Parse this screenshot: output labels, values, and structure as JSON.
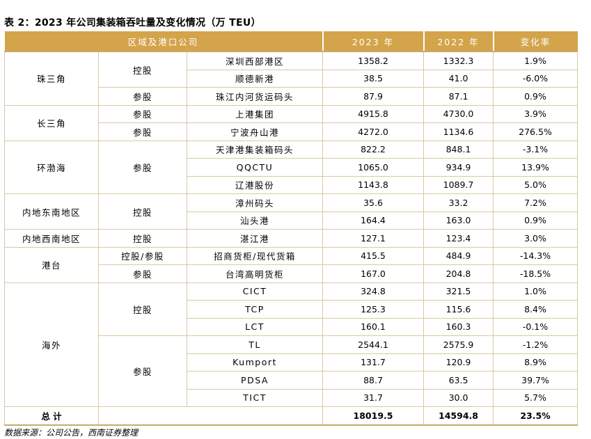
{
  "title": "表 2：2023 年公司集装箱吞吐量及变化情况（万 TEU）",
  "header": {
    "region_port": "区域及港口公司",
    "y2023": "2023 年",
    "y2022": "2022 年",
    "change": "变化率"
  },
  "regions": [
    {
      "name": "珠三角",
      "groups": [
        {
          "type": "控股",
          "rows": [
            {
              "port": "深圳西部港区",
              "y2023": "1358.2",
              "y2022": "1332.3",
              "change": "1.9%"
            },
            {
              "port": "顺德新港",
              "y2023": "38.5",
              "y2022": "41.0",
              "change": "-6.0%"
            }
          ]
        },
        {
          "type": "参股",
          "rows": [
            {
              "port": "珠江内河货运码头",
              "y2023": "87.9",
              "y2022": "87.1",
              "change": "0.9%"
            }
          ]
        }
      ]
    },
    {
      "name": "长三角",
      "groups": [
        {
          "type": "参股",
          "rows": [
            {
              "port": "上港集团",
              "y2023": "4915.8",
              "y2022": "4730.0",
              "change": "3.9%"
            }
          ]
        },
        {
          "type": "参股",
          "rows": [
            {
              "port": "宁波舟山港",
              "y2023": "4272.0",
              "y2022": "1134.6",
              "change": "276.5%"
            }
          ]
        }
      ]
    },
    {
      "name": "环渤海",
      "groups": [
        {
          "type": "参股",
          "rows": [
            {
              "port": "天津港集装箱码头",
              "y2023": "822.2",
              "y2022": "848.1",
              "change": "-3.1%"
            },
            {
              "port": "QQCTU",
              "y2023": "1065.0",
              "y2022": "934.9",
              "change": "13.9%"
            },
            {
              "port": "辽港股份",
              "y2023": "1143.8",
              "y2022": "1089.7",
              "change": "5.0%"
            }
          ]
        }
      ]
    },
    {
      "name": "内地东南地区",
      "groups": [
        {
          "type": "控股",
          "rows": [
            {
              "port": "漳州码头",
              "y2023": "35.6",
              "y2022": "33.2",
              "change": "7.2%"
            },
            {
              "port": "汕头港",
              "y2023": "164.4",
              "y2022": "163.0",
              "change": "0.9%"
            }
          ]
        }
      ]
    },
    {
      "name": "内地西南地区",
      "groups": [
        {
          "type": "控股",
          "rows": [
            {
              "port": "湛江港",
              "y2023": "127.1",
              "y2022": "123.4",
              "change": "3.0%"
            }
          ]
        }
      ]
    },
    {
      "name": "港台",
      "groups": [
        {
          "type": "控股/参股",
          "rows": [
            {
              "port": "招商货柜/现代货箱",
              "y2023": "415.5",
              "y2022": "484.9",
              "change": "-14.3%"
            }
          ]
        },
        {
          "type": "参股",
          "rows": [
            {
              "port": "台湾高明货柜",
              "y2023": "167.0",
              "y2022": "204.8",
              "change": "-18.5%"
            }
          ]
        }
      ]
    },
    {
      "name": "海外",
      "groups": [
        {
          "type": "控股",
          "rows": [
            {
              "port": "CICT",
              "y2023": "324.8",
              "y2022": "321.5",
              "change": "1.0%"
            },
            {
              "port": "TCP",
              "y2023": "125.3",
              "y2022": "115.6",
              "change": "8.4%"
            },
            {
              "port": "LCT",
              "y2023": "160.1",
              "y2022": "160.3",
              "change": "-0.1%"
            }
          ]
        },
        {
          "type": "参股",
          "rows": [
            {
              "port": "TL",
              "y2023": "2544.1",
              "y2022": "2575.9",
              "change": "-1.2%"
            },
            {
              "port": "Kumport",
              "y2023": "131.7",
              "y2022": "120.9",
              "change": "8.9%"
            },
            {
              "port": "PDSA",
              "y2023": "88.7",
              "y2022": "63.5",
              "change": "39.7%"
            },
            {
              "port": "TICT",
              "y2023": "31.7",
              "y2022": "30.0",
              "change": "5.7%"
            }
          ]
        }
      ]
    }
  ],
  "total": {
    "label": "总 计",
    "y2023": "18019.5",
    "y2022": "14594.8",
    "change": "23.5%"
  },
  "source": "数据来源：公司公告，西南证券整理"
}
